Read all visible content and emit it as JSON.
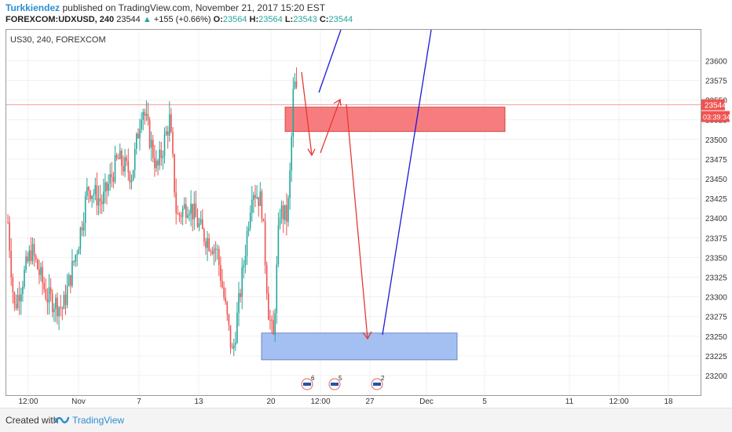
{
  "header": {
    "author": "Turkkiendez",
    "published": "published on TradingView.com, November 21, 2017 15:20 EST",
    "symbol": "FOREXCOM:UDXUSD, 240",
    "last": "23544",
    "change_arrow": "▲",
    "change": "+155 (+0.66%)",
    "o_label": "O:",
    "o": "23564",
    "h_label": "H:",
    "h": "23564",
    "l_label": "L:",
    "l": "23543",
    "c_label": "C:",
    "c": "23544"
  },
  "footer": {
    "created_with": "Created with",
    "brand": "TradingView"
  },
  "colors": {
    "up": "#26a69a",
    "down": "#ef5350",
    "resistance_zone": "#f77c80",
    "support_zone": "#a4c0f2",
    "projection_red": "#e53935",
    "projection_blue": "#1a1ad6"
  },
  "chart_data": {
    "type": "candlestick",
    "title": "US30, 240, FOREXCOM",
    "y_ticks": [
      23200,
      23225,
      23250,
      23275,
      23300,
      23325,
      23350,
      23375,
      23400,
      23425,
      23450,
      23475,
      23500,
      23525,
      23550,
      23575,
      23600
    ],
    "ylim": [
      23185,
      23605
    ],
    "x_tick_labels": [
      "12:00",
      "Nov",
      "7",
      "13",
      "20",
      "12:00",
      "27",
      "Dec",
      "5",
      "11",
      "12:00",
      "18"
    ],
    "price_label": "23544",
    "countdown_label": "03:39:34",
    "current_price": 23544,
    "event_badges": [
      "6",
      "5",
      "2"
    ],
    "zones": [
      {
        "name": "resistance",
        "y_low": 23510,
        "y_high": 23541
      },
      {
        "name": "support",
        "y_low": 23220,
        "y_high": 23254
      }
    ],
    "candles_approx_range": {
      "first_close": 23395,
      "low": 23205,
      "high": 23582,
      "last_close": 23544
    }
  }
}
